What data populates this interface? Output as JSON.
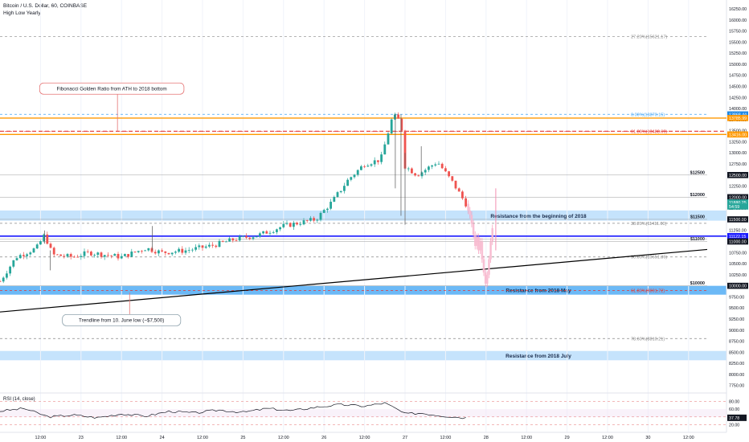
{
  "header": {
    "symbol_line": "Bitcoin / U.S. Dollar, 60, COINBASE",
    "indicator": "High Low Yearly"
  },
  "colors": {
    "up": "#26a69a",
    "down": "#ef5350",
    "fib": "#555555",
    "resistance_fill": "#bbdefb",
    "resistance_fill_strong": "#64b5f6",
    "blue_line": "#1a1aff",
    "orange_line": "#ff9800",
    "red_dash": "#e53935",
    "trendline": "#000000",
    "label_green": "#26a69a",
    "label_blue": "#1e88e5"
  },
  "chart_data": {
    "type": "candlestick",
    "ylim": [
      7600,
      16450
    ],
    "y_ticks": [
      "16250.00",
      "16000.00",
      "15750.00",
      "15500.00",
      "15250.00",
      "15000.00",
      "14750.00",
      "14500.00",
      "14250.00",
      "14000.00",
      "13750.00",
      "13500.00",
      "13250.00",
      "13000.00",
      "12750.00",
      "12500.00",
      "12250.00",
      "12000.00",
      "11750.00",
      "11500.00",
      "11250.00",
      "11000.00",
      "10750.00",
      "10500.00",
      "10250.00",
      "10000.00",
      "9750.00",
      "9500.00",
      "9250.00",
      "9000.00",
      "8750.00",
      "8500.00",
      "8250.00",
      "8000.00",
      "7750.00"
    ],
    "x_ticks": [
      {
        "label": "12:00",
        "t": 0.5
      },
      {
        "label": "23",
        "t": 1
      },
      {
        "label": "12:00",
        "t": 1.5
      },
      {
        "label": "24",
        "t": 2
      },
      {
        "label": "12:00",
        "t": 2.5
      },
      {
        "label": "25",
        "t": 3
      },
      {
        "label": "12:00",
        "t": 3.5
      },
      {
        "label": "26",
        "t": 4
      },
      {
        "label": "12:00",
        "t": 4.5
      },
      {
        "label": "27",
        "t": 5
      },
      {
        "label": "12:00",
        "t": 5.5
      },
      {
        "label": "28",
        "t": 6
      },
      {
        "label": "12:00",
        "t": 6.5
      },
      {
        "label": "29",
        "t": 7
      },
      {
        "label": "12:00",
        "t": 7.5
      },
      {
        "label": "30",
        "t": 8
      },
      {
        "label": "12:00",
        "t": 8.5
      }
    ],
    "candle_waypoints": [
      {
        "t": 0.0,
        "p": 10100
      },
      {
        "t": 0.2,
        "p": 10650
      },
      {
        "t": 0.45,
        "p": 10850
      },
      {
        "t": 0.55,
        "p": 11150
      },
      {
        "t": 0.65,
        "p": 10700
      },
      {
        "t": 0.9,
        "p": 10650
      },
      {
        "t": 1.1,
        "p": 10750
      },
      {
        "t": 1.5,
        "p": 10650
      },
      {
        "t": 1.8,
        "p": 10850
      },
      {
        "t": 2.0,
        "p": 10750
      },
      {
        "t": 2.3,
        "p": 10800
      },
      {
        "t": 2.6,
        "p": 10900
      },
      {
        "t": 2.9,
        "p": 11050
      },
      {
        "t": 3.2,
        "p": 11150
      },
      {
        "t": 3.5,
        "p": 11350
      },
      {
        "t": 3.9,
        "p": 11500
      },
      {
        "t": 4.1,
        "p": 11900
      },
      {
        "t": 4.3,
        "p": 12400
      },
      {
        "t": 4.5,
        "p": 12750
      },
      {
        "t": 4.7,
        "p": 12850
      },
      {
        "t": 4.85,
        "p": 13850
      },
      {
        "t": 4.95,
        "p": 13700
      },
      {
        "t": 5.0,
        "p": 12700
      },
      {
        "t": 5.15,
        "p": 12500
      },
      {
        "t": 5.4,
        "p": 12800
      },
      {
        "t": 5.6,
        "p": 12300
      },
      {
        "t": 5.75,
        "p": 11850
      }
    ],
    "projection": {
      "t_start": 5.78,
      "t_end": 6.1,
      "points": [
        11850,
        11700,
        11600,
        11400,
        11150,
        10900,
        11100,
        10800,
        11000,
        10600,
        10300,
        10050,
        10250,
        10600,
        11000,
        11300
      ]
    },
    "fib_levels": [
      {
        "label": "27.20%(15621.17)",
        "price": 15621.17
      },
      {
        "label": "0.00%(13870.15)",
        "price": 13870.15
      },
      {
        "label": "61.80%(13488.69)",
        "price": 13488.69
      },
      {
        "label": "38.20%(11411.00)",
        "price": 11411.0
      },
      {
        "label": "50.00%(10651.36)",
        "price": 10651.36
      },
      {
        "label": "61.80%(9891.72)",
        "price": 9891.72
      },
      {
        "label": "78.60%(8810.21)",
        "price": 8810.21
      }
    ],
    "level_labels": [
      {
        "label": "$12500",
        "price": 12500
      },
      {
        "label": "$12000",
        "price": 12000
      },
      {
        "label": "$11500",
        "price": 11500
      },
      {
        "label": "$11000",
        "price": 11000
      },
      {
        "label": "$10000",
        "price": 10000
      }
    ],
    "resistance_zones": [
      {
        "label": "Resistance from the beginning of 2018",
        "low": 11470,
        "high": 11700
      },
      {
        "label": "Resistance from 2018 May",
        "low": 9800,
        "high": 10000
      },
      {
        "label": "Resistance from 2018 July",
        "low": 8320,
        "high": 8530
      }
    ],
    "price_badges": [
      {
        "text": "13868.44",
        "price": 13868.44,
        "color": "#1e88e5"
      },
      {
        "text": "13785.99",
        "price": 13785.99,
        "color": "#ff9800"
      },
      {
        "text": "13416.00",
        "price": 13416,
        "color": "#ff9800"
      },
      {
        "text": "12500.00",
        "price": 12500,
        "color": "#ffffff"
      },
      {
        "text": "12000.00",
        "price": 12000,
        "color": "#ffffff"
      },
      {
        "text": "11880.25",
        "price": 11880.25,
        "color": "#26a69a"
      },
      {
        "text": "54:59",
        "price": 11790,
        "color": "#26a69a"
      },
      {
        "text": "11500.00",
        "price": 11500,
        "color": "#ffffff"
      },
      {
        "text": "11122.15",
        "price": 11122.15,
        "color": "#1a1aff"
      },
      {
        "text": "11000.00",
        "price": 11000,
        "color": "#ffffff"
      },
      {
        "text": "10000.00",
        "price": 10000,
        "color": "#ffffff"
      }
    ],
    "horizontal_lines": {
      "orange_top": 13785.99,
      "orange_bottom": 13416,
      "red_dash": 13488.69,
      "blue_line": 11122.15
    },
    "trendline": {
      "t1": 0,
      "p1": 9410,
      "t2": 8.73,
      "p2": 10820
    },
    "annotations": [
      {
        "text": "Fibonacci Golden Ratio from ATH to 2018 bottom",
        "t": 1.38,
        "price": 14450,
        "tip_t": 1.45,
        "tip_price": 13488
      },
      {
        "text": "Trendline from 10. June low (~$7,500)",
        "t": 1.5,
        "price": 9225,
        "tip_t": 1.6,
        "tip_price": 9850
      }
    ],
    "rsi": {
      "title": "RSI (14, close)",
      "ylim": [
        0,
        100
      ],
      "ticks": [
        "80.00",
        "60.00",
        "40.00",
        "20.00"
      ],
      "last_badge": "37.78",
      "last": 37.78,
      "waypoints": [
        {
          "t": 0.0,
          "v": 55
        },
        {
          "t": 0.3,
          "v": 62
        },
        {
          "t": 0.6,
          "v": 40
        },
        {
          "t": 0.9,
          "v": 45
        },
        {
          "t": 1.2,
          "v": 38
        },
        {
          "t": 1.5,
          "v": 48
        },
        {
          "t": 1.8,
          "v": 42
        },
        {
          "t": 2.1,
          "v": 55
        },
        {
          "t": 2.4,
          "v": 50
        },
        {
          "t": 2.7,
          "v": 58
        },
        {
          "t": 3.0,
          "v": 52
        },
        {
          "t": 3.3,
          "v": 62
        },
        {
          "t": 3.6,
          "v": 56
        },
        {
          "t": 3.9,
          "v": 65
        },
        {
          "t": 4.2,
          "v": 72
        },
        {
          "t": 4.5,
          "v": 68
        },
        {
          "t": 4.75,
          "v": 76
        },
        {
          "t": 4.9,
          "v": 60
        },
        {
          "t": 5.0,
          "v": 48
        },
        {
          "t": 5.2,
          "v": 50
        },
        {
          "t": 5.5,
          "v": 42
        },
        {
          "t": 5.75,
          "v": 37.78
        }
      ]
    }
  }
}
